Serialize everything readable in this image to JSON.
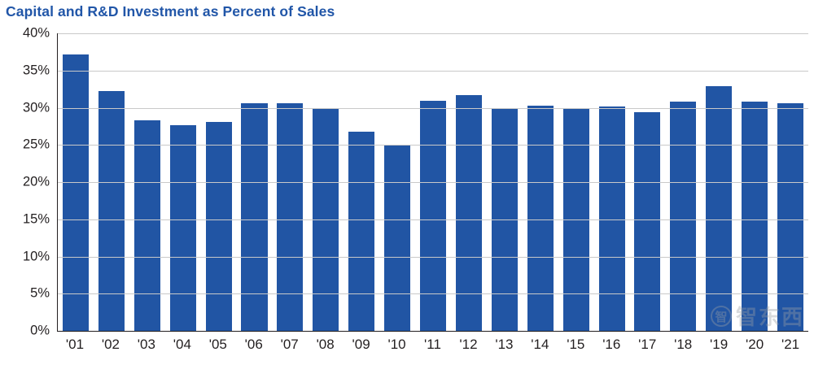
{
  "title": "Capital and R&D Investment as Percent of Sales",
  "colors": {
    "bar": "#2155a4",
    "title": "#2156a8",
    "grid": "#c9c9c9",
    "axis": "#231f20"
  },
  "watermark": {
    "logo_text": "智",
    "label": "智东西"
  },
  "chart_data": {
    "type": "bar",
    "title": "Capital and R&D Investment as Percent of Sales",
    "categories": [
      "'01",
      "'02",
      "'03",
      "'04",
      "'05",
      "'06",
      "'07",
      "'08",
      "'09",
      "'10",
      "'11",
      "'12",
      "'13",
      "'14",
      "'15",
      "'16",
      "'17",
      "'18",
      "'19",
      "'20",
      "'21"
    ],
    "values": [
      37.2,
      32.2,
      28.3,
      27.6,
      28.1,
      30.6,
      30.6,
      29.8,
      26.8,
      25.0,
      30.9,
      31.7,
      30.0,
      30.3,
      30.0,
      30.2,
      29.4,
      30.8,
      32.9,
      30.8,
      30.6
    ],
    "xlabel": "",
    "ylabel": "",
    "ylim": [
      0,
      40
    ],
    "ytick_step": 5,
    "ytick_format": "percent",
    "grid": true,
    "legend_position": "none"
  }
}
